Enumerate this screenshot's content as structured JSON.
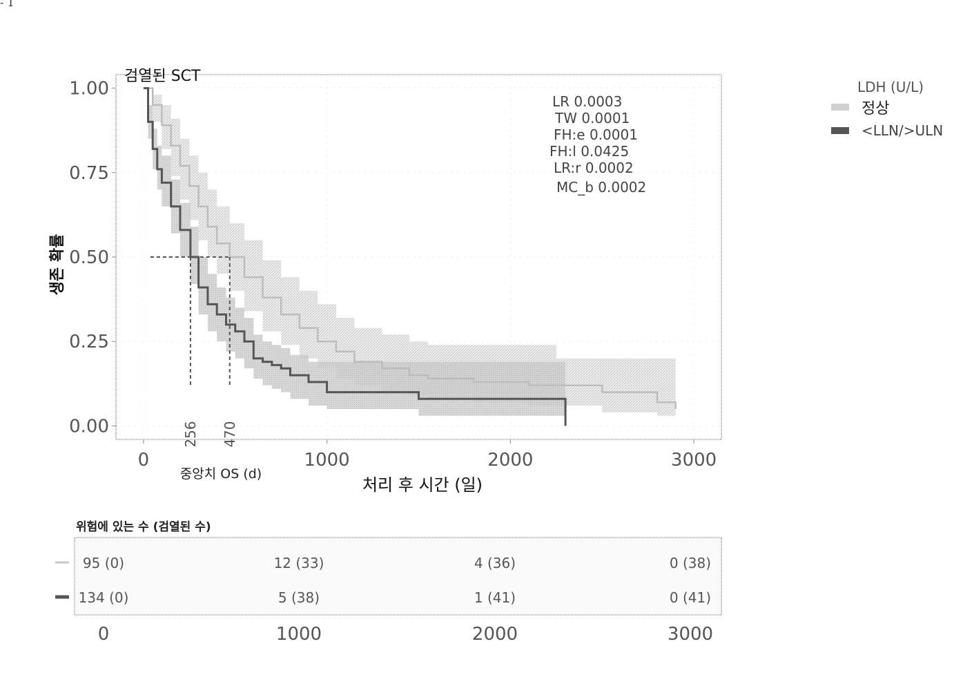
{
  "page_marker": "- 1",
  "chart_data": {
    "type": "line",
    "subtype": "kaplan-meier",
    "title": "검열된 SCT",
    "xlabel": "처리 후 시간 (일)",
    "ylabel": "생존 확률",
    "xlim": [
      -150,
      3150
    ],
    "ylim": [
      -0.04,
      1.04
    ],
    "x_ticks": [
      0,
      1000,
      2000,
      3000
    ],
    "y_ticks": [
      "0.00",
      "0.25",
      "0.50",
      "0.75",
      "1.00"
    ],
    "legend": {
      "title": "LDH (U/L)",
      "placement": "outside-right",
      "entries": [
        "정상",
        "<LLN/>ULN"
      ]
    },
    "stats": [
      "LR 0.0003",
      "TW 0.0001",
      "FH:e 0.0001",
      "FH:l 0.0425",
      "LR:r 0.0002",
      "MC_b 0.0002"
    ],
    "median_label": "중앙치 OS (d)",
    "median_lines": [
      {
        "series": "<LLN/>ULN",
        "x": 256,
        "y": 0.5,
        "label": "256"
      },
      {
        "series": "정상",
        "x": 470,
        "y": 0.5,
        "label": "470"
      }
    ],
    "series": [
      {
        "name": "정상",
        "color": "#c9c9c9",
        "x": [
          0,
          50,
          100,
          150,
          200,
          250,
          300,
          350,
          400,
          470,
          550,
          650,
          750,
          850,
          950,
          1050,
          1150,
          1300,
          1450,
          1550,
          1800,
          2100,
          2250,
          2500,
          2800,
          2900
        ],
        "y": [
          1.0,
          0.95,
          0.89,
          0.83,
          0.77,
          0.71,
          0.65,
          0.59,
          0.54,
          0.5,
          0.44,
          0.38,
          0.33,
          0.29,
          0.25,
          0.22,
          0.19,
          0.17,
          0.15,
          0.14,
          0.13,
          0.12,
          0.12,
          0.1,
          0.07,
          0.05
        ],
        "upper": [
          1.0,
          0.98,
          0.95,
          0.91,
          0.85,
          0.8,
          0.75,
          0.7,
          0.65,
          0.6,
          0.55,
          0.49,
          0.44,
          0.4,
          0.36,
          0.32,
          0.29,
          0.27,
          0.25,
          0.24,
          0.24,
          0.24,
          0.2,
          0.2,
          0.2,
          0.2
        ],
        "lower": [
          1.0,
          0.9,
          0.82,
          0.74,
          0.67,
          0.61,
          0.55,
          0.5,
          0.45,
          0.4,
          0.34,
          0.28,
          0.24,
          0.2,
          0.17,
          0.14,
          0.12,
          0.1,
          0.09,
          0.08,
          0.07,
          0.06,
          0.06,
          0.04,
          0.03,
          0.02
        ]
      },
      {
        "name": "<LLN/>ULN",
        "color": "#555555",
        "x": [
          0,
          25,
          50,
          75,
          100,
          150,
          200,
          256,
          300,
          350,
          400,
          450,
          500,
          550,
          600,
          650,
          700,
          750,
          800,
          900,
          1000,
          1200,
          1500,
          1800,
          2200,
          2300
        ],
        "y": [
          1.0,
          0.9,
          0.82,
          0.76,
          0.72,
          0.65,
          0.58,
          0.5,
          0.41,
          0.36,
          0.33,
          0.3,
          0.28,
          0.25,
          0.2,
          0.19,
          0.18,
          0.17,
          0.15,
          0.13,
          0.1,
          0.1,
          0.08,
          0.08,
          0.08,
          0.0
        ],
        "upper": [
          1.0,
          0.95,
          0.88,
          0.83,
          0.8,
          0.73,
          0.66,
          0.59,
          0.5,
          0.45,
          0.41,
          0.38,
          0.35,
          0.32,
          0.27,
          0.25,
          0.24,
          0.23,
          0.21,
          0.19,
          0.19,
          0.19,
          0.19,
          0.19,
          0.19,
          0.19
        ],
        "lower": [
          1.0,
          0.85,
          0.76,
          0.7,
          0.65,
          0.57,
          0.5,
          0.42,
          0.33,
          0.28,
          0.25,
          0.22,
          0.2,
          0.17,
          0.14,
          0.12,
          0.11,
          0.1,
          0.08,
          0.06,
          0.05,
          0.05,
          0.03,
          0.03,
          0.03,
          0.0
        ]
      }
    ]
  },
  "risk_table": {
    "title": "위험에 있는 수 (검열된 수)",
    "x_ticks": [
      0,
      1000,
      2000,
      3000
    ],
    "rows": [
      {
        "series": "정상",
        "color": "#c9c9c9",
        "cells": [
          "95 (0)",
          "12 (33)",
          "4 (36)",
          "0 (38)"
        ]
      },
      {
        "series": "<LLN/>ULN",
        "color": "#555555",
        "cells": [
          "134 (0)",
          "5 (38)",
          "1 (41)",
          "0 (41)"
        ]
      }
    ]
  }
}
